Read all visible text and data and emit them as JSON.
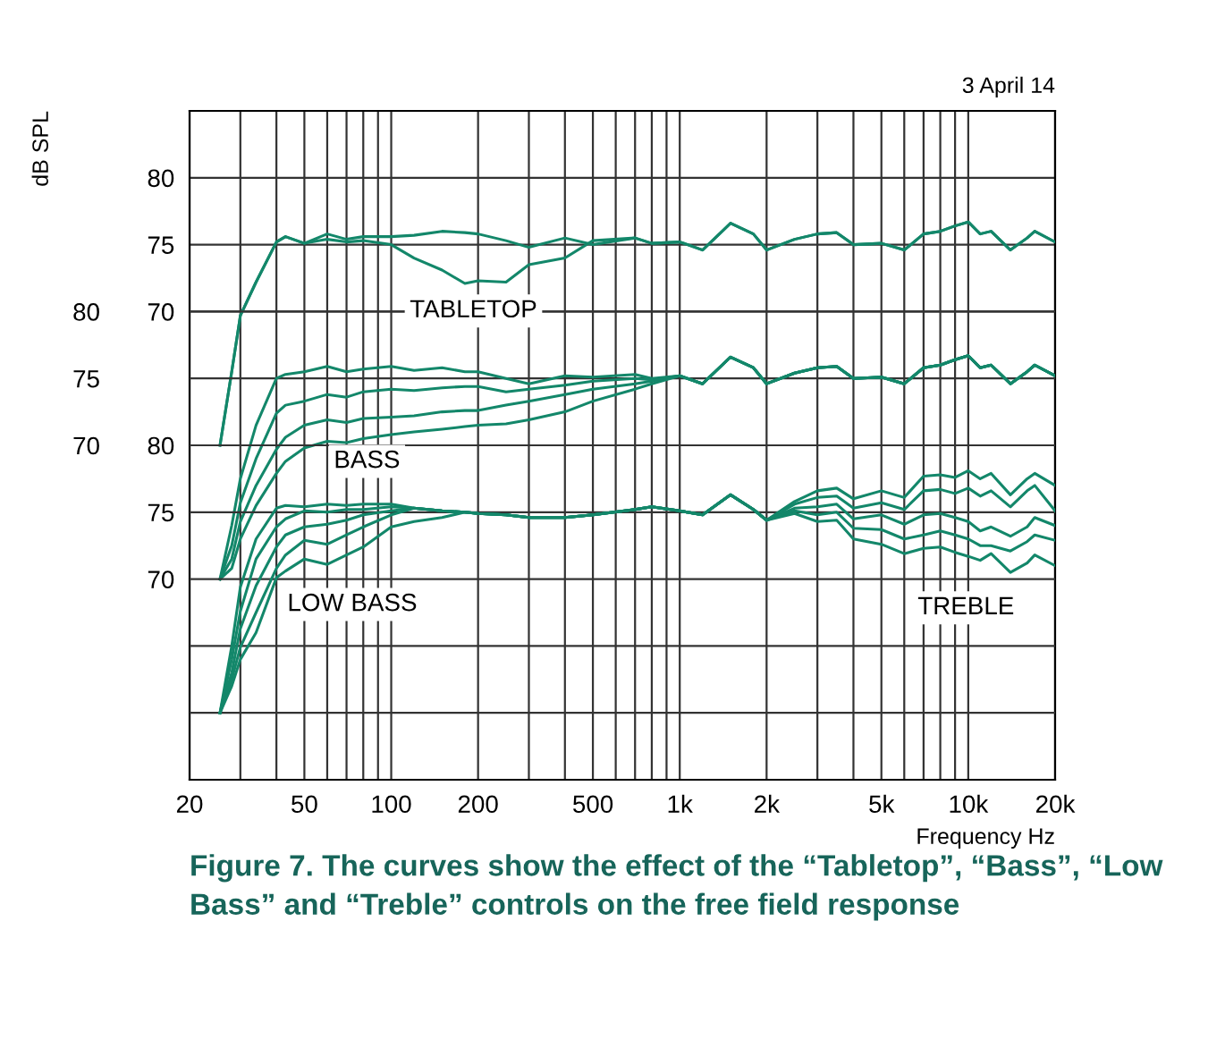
{
  "chart_data": {
    "type": "line",
    "title": "Figure 7. The curves show the effect of the “Tabletop”, “Bass”, “Low Bass” and “Treble” controls on the free field response",
    "xlabel": "Frequency Hz",
    "y2label": "dB SPL",
    "annotations": [
      "3 April 14",
      "TABLETOP",
      "BASS",
      "LOW BASS",
      "TREBLE"
    ],
    "log": "x",
    "grid": true,
    "marker": "none",
    "line_style": "solid",
    "xlim": [
      20,
      20000
    ],
    "ylim": [
      35,
      85
    ],
    "y2lim": [
      45,
      95
    ],
    "y3lim": [
      55,
      105
    ],
    "xticks": [
      20,
      {
        "value": 30,
        "label": null
      },
      {
        "value": 40,
        "label": null
      },
      50,
      {
        "value": 60,
        "label": null
      },
      {
        "value": 70,
        "label": null
      },
      {
        "value": 80,
        "label": null
      },
      {
        "value": 90,
        "label": null
      },
      100,
      200,
      {
        "value": 300,
        "label": null
      },
      {
        "value": 400,
        "label": null
      },
      500,
      {
        "value": 600,
        "label": null
      },
      {
        "value": 700,
        "label": null
      },
      {
        "value": 800,
        "label": null
      },
      {
        "value": 900,
        "label": null
      },
      {
        "value": 1000,
        "label": "1k"
      },
      {
        "value": 2000,
        "label": "2k"
      },
      {
        "value": 3000,
        "label": null
      },
      {
        "value": 4000,
        "label": null
      },
      {
        "value": 5000,
        "label": "5k"
      },
      {
        "value": 6000,
        "label": null
      },
      {
        "value": 7000,
        "label": null
      },
      {
        "value": 8000,
        "label": null
      },
      {
        "value": 9000,
        "label": null
      },
      {
        "value": 10000,
        "label": "10k"
      },
      {
        "value": 20000,
        "label": "20k"
      }
    ],
    "yticks": [
      70,
      75,
      80
    ],
    "y2ticks": [
      70,
      75,
      80
    ],
    "y3ticks": [
      {
        "value": 60,
        "label": null
      },
      {
        "value": 65,
        "label": null
      },
      70,
      75,
      80
    ],
    "x": [
      25.5,
      28,
      30,
      34,
      40,
      43,
      50,
      60,
      70,
      80,
      100,
      120,
      150,
      180,
      200,
      250,
      300,
      400,
      500,
      700,
      800,
      1000,
      1200,
      1500,
      1800,
      2000,
      2500,
      3000,
      3500,
      4000,
      5000,
      6000,
      7000,
      8000,
      9000,
      10000,
      11000,
      12000,
      14000,
      16000,
      17000,
      20000
    ],
    "series": [
      {
        "color": "#13876a",
        "values": [
          60,
          65.5,
          69.7,
          72.2,
          75.2,
          75.6,
          75.1,
          75.8,
          75.4,
          75.6,
          75.6,
          75.7,
          76.0,
          75.9,
          75.8,
          75.3,
          74.8,
          75.5,
          75.0,
          75.5,
          75.1,
          75.2,
          74.6,
          76.6,
          75.8,
          74.6,
          75.4,
          75.8,
          75.9,
          75.0,
          75.1,
          74.6,
          75.8,
          76.0,
          76.4,
          76.7,
          75.8,
          76.0,
          74.6,
          75.5,
          76.0,
          75.2
        ]
      },
      {
        "color": "#13876a",
        "values": [
          60,
          65.5,
          69.7,
          72.2,
          75.2,
          75.6,
          75.1,
          75.4,
          75.2,
          75.3,
          75.0,
          74.0,
          73.1,
          72.1,
          72.3,
          72.2,
          73.5,
          74.0,
          75.3,
          75.5,
          75.1,
          75.2,
          74.6,
          76.6,
          75.8,
          74.6,
          75.4,
          75.8,
          75.9,
          75.0,
          75.1,
          74.6,
          75.8,
          76.0,
          76.4,
          76.7,
          75.8,
          76.0,
          74.6,
          75.5,
          76.0,
          75.2
        ]
      },
      {
        "color": "#13876a",
        "axis": "y2",
        "values": [
          60,
          64,
          67.5,
          71.5,
          75,
          75.3,
          75.5,
          75.9,
          75.5,
          75.7,
          75.9,
          75.6,
          75.8,
          75.5,
          75.5,
          75.0,
          74.6,
          75.2,
          75.1,
          75.3,
          75.0,
          75.2,
          74.6,
          76.6,
          75.8,
          74.6,
          75.4,
          75.8,
          75.9,
          75.0,
          75.1,
          74.6,
          75.8,
          76.0,
          76.4,
          76.7,
          75.8,
          76.0,
          74.6,
          75.5,
          76.0,
          75.2
        ]
      },
      {
        "color": "#13876a",
        "axis": "y2",
        "values": [
          60,
          62.5,
          65.7,
          69,
          72.4,
          73,
          73.3,
          73.8,
          73.6,
          74.0,
          74.2,
          74.1,
          74.3,
          74.4,
          74.4,
          74.0,
          74.2,
          74.5,
          74.8,
          75.0,
          74.9,
          75.2,
          74.6,
          76.6,
          75.8,
          74.6,
          75.4,
          75.8,
          75.9,
          75.0,
          75.1,
          74.6,
          75.8,
          76.0,
          76.4,
          76.7,
          75.8,
          76.0,
          74.6,
          75.5,
          76.0,
          75.2
        ]
      },
      {
        "color": "#13876a",
        "axis": "y2",
        "values": [
          60,
          61.5,
          64.3,
          67,
          69.7,
          70.6,
          71.5,
          71.9,
          71.7,
          72.0,
          72.1,
          72.2,
          72.5,
          72.6,
          72.6,
          73.0,
          73.3,
          73.8,
          74.2,
          74.6,
          74.8,
          75.2,
          74.6,
          76.6,
          75.8,
          74.6,
          75.4,
          75.8,
          75.9,
          75.0,
          75.1,
          74.6,
          75.8,
          76.0,
          76.4,
          76.7,
          75.8,
          76.0,
          74.6,
          75.5,
          76.0,
          75.2
        ]
      },
      {
        "color": "#13876a",
        "axis": "y2",
        "values": [
          60,
          60.8,
          63,
          65.5,
          67.9,
          68.8,
          69.8,
          70.3,
          70.2,
          70.5,
          70.8,
          71.0,
          71.2,
          71.4,
          71.5,
          71.6,
          71.9,
          72.5,
          73.3,
          74.2,
          74.6,
          75.2,
          74.6,
          76.6,
          75.8,
          74.6,
          75.4,
          75.8,
          75.9,
          75.0,
          75.1,
          74.6,
          75.8,
          76.0,
          76.4,
          76.7,
          75.8,
          76.0,
          74.6,
          75.5,
          76.0,
          75.2
        ]
      },
      {
        "color": "#13876a",
        "axis": "y3",
        "values": [
          60,
          65,
          69.4,
          73,
          75.3,
          75.5,
          75.4,
          75.6,
          75.5,
          75.6,
          75.6,
          75.3,
          75.1,
          75.0,
          74.9,
          74.8,
          74.6,
          74.6,
          74.8,
          75.2,
          75.4,
          75.1,
          74.8,
          76.3,
          75.2,
          74.4,
          75.8,
          76.6,
          76.8,
          76.0,
          76.6,
          76.1,
          77.7,
          77.8,
          77.6,
          78.1,
          77.5,
          77.9,
          76.3,
          77.5,
          77.9,
          77.0
        ]
      },
      {
        "color": "#13876a",
        "axis": "y3",
        "values": [
          60,
          64,
          67.6,
          71.5,
          73.9,
          74.5,
          75.1,
          75.0,
          75.2,
          75.2,
          75.4,
          75.3,
          75.1,
          75.0,
          74.9,
          74.8,
          74.6,
          74.6,
          74.8,
          75.2,
          75.4,
          75.1,
          74.8,
          76.3,
          75.2,
          74.4,
          75.6,
          76.1,
          76.2,
          75.3,
          75.7,
          75.2,
          76.6,
          76.7,
          76.4,
          76.8,
          76.2,
          76.6,
          75.4,
          76.6,
          77.0,
          75.1
        ]
      },
      {
        "color": "#13876a",
        "axis": "y3",
        "values": [
          60,
          63,
          66.3,
          69.5,
          72.4,
          73.3,
          73.9,
          74.1,
          74.4,
          74.8,
          75.1,
          75.3,
          75.1,
          75.0,
          74.9,
          74.8,
          74.6,
          74.6,
          74.8,
          75.2,
          75.4,
          75.1,
          74.8,
          76.3,
          75.2,
          74.4,
          75.3,
          75.4,
          75.6,
          74.5,
          74.8,
          74.1,
          74.8,
          74.9,
          74.6,
          74.3,
          73.6,
          73.9,
          73.2,
          73.9,
          74.6,
          74.0
        ]
      },
      {
        "color": "#13876a",
        "axis": "y3",
        "values": [
          60,
          62.5,
          64.9,
          67.5,
          70.8,
          71.8,
          72.9,
          72.6,
          73.3,
          73.9,
          74.8,
          75.3,
          75.1,
          75.0,
          74.9,
          74.8,
          74.6,
          74.6,
          74.8,
          75.2,
          75.4,
          75.1,
          74.8,
          76.3,
          75.2,
          74.4,
          75.1,
          74.8,
          75.0,
          73.8,
          73.7,
          73.0,
          73.3,
          73.6,
          73.3,
          73.0,
          72.5,
          72.5,
          72.1,
          72.8,
          73.3,
          72.9
        ]
      },
      {
        "color": "#13876a",
        "axis": "y3",
        "values": [
          60,
          62,
          64.0,
          66,
          70.1,
          70.6,
          71.5,
          71.1,
          71.8,
          72.4,
          73.9,
          74.3,
          74.6,
          75.0,
          74.9,
          74.8,
          74.6,
          74.6,
          74.8,
          75.2,
          75.4,
          75.1,
          74.8,
          76.3,
          75.2,
          74.4,
          74.9,
          74.3,
          74.4,
          73.0,
          72.6,
          71.9,
          72.3,
          72.4,
          72.0,
          71.7,
          71.4,
          71.9,
          70.5,
          71.2,
          71.8,
          71.0
        ]
      }
    ]
  }
}
